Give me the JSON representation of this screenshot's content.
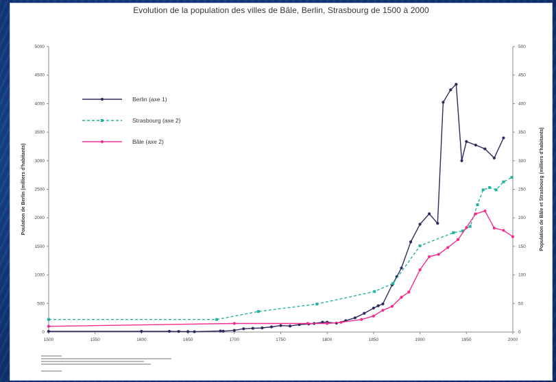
{
  "chart_data": {
    "type": "line",
    "title": "Evolution de la population des villes de Bâle, Berlin, Strasbourg de 1500 à 2000",
    "xlabel": "",
    "ylabel_left": "Poulation de Berlin (milliers d'habitants)",
    "ylabel_right": "Population de Bâle et Strasbourg (milliers d'habitants)",
    "xlim": [
      1500,
      2000
    ],
    "ylim_left": [
      0,
      5000
    ],
    "ylim_right": [
      0,
      500
    ],
    "x_ticks": [
      1500,
      1550,
      1600,
      1650,
      1700,
      1750,
      1800,
      1850,
      1900,
      1950,
      2000
    ],
    "y_ticks_left": [
      0,
      500,
      1000,
      1500,
      2000,
      2500,
      3000,
      3500,
      4000,
      4500,
      5000
    ],
    "y_ticks_right": [
      0,
      50,
      100,
      150,
      200,
      250,
      300,
      350,
      400,
      450,
      500
    ],
    "legend_position": "top-left",
    "series": [
      {
        "name": "Berlin (axe 1)",
        "axis": "left",
        "color": "#2b2b5e",
        "style": "solid",
        "points": [
          [
            1500,
            12
          ],
          [
            1600,
            12
          ],
          [
            1630,
            12
          ],
          [
            1640,
            10
          ],
          [
            1650,
            8
          ],
          [
            1657,
            6
          ],
          [
            1685,
            18
          ],
          [
            1688,
            15
          ],
          [
            1700,
            29
          ],
          [
            1710,
            57
          ],
          [
            1720,
            65
          ],
          [
            1730,
            72
          ],
          [
            1740,
            90
          ],
          [
            1750,
            113
          ],
          [
            1760,
            105
          ],
          [
            1770,
            130
          ],
          [
            1780,
            140
          ],
          [
            1786,
            150
          ],
          [
            1795,
            172
          ],
          [
            1800,
            172
          ],
          [
            1810,
            155
          ],
          [
            1820,
            199
          ],
          [
            1830,
            248
          ],
          [
            1840,
            328
          ],
          [
            1850,
            419
          ],
          [
            1855,
            460
          ],
          [
            1860,
            493
          ],
          [
            1870,
            826
          ],
          [
            1875,
            970
          ],
          [
            1880,
            1122
          ],
          [
            1890,
            1578
          ],
          [
            1900,
            1889
          ],
          [
            1910,
            2071
          ],
          [
            1919,
            1903
          ],
          [
            1925,
            4024
          ],
          [
            1933,
            4242
          ],
          [
            1939,
            4339
          ],
          [
            1945,
            3000
          ],
          [
            1950,
            3336
          ],
          [
            1960,
            3274
          ],
          [
            1970,
            3208
          ],
          [
            1980,
            3048
          ],
          [
            1990,
            3400
          ]
        ]
      },
      {
        "name": "Strasbourg (axe 2)",
        "axis": "right",
        "color": "#22b3a0",
        "style": "dashed",
        "points": [
          [
            1500,
            22
          ],
          [
            1681,
            22
          ],
          [
            1726,
            36
          ],
          [
            1789,
            49
          ],
          [
            1851,
            71
          ],
          [
            1871,
            85
          ],
          [
            1900,
            151
          ],
          [
            1936,
            174
          ],
          [
            1946,
            177
          ],
          [
            1954,
            185
          ],
          [
            1962,
            223
          ],
          [
            1968,
            249
          ],
          [
            1975,
            253
          ],
          [
            1982,
            249
          ],
          [
            1990,
            263
          ],
          [
            1999,
            271
          ]
        ]
      },
      {
        "name": "Bâle (axe 2)",
        "axis": "right",
        "color": "#f02c8e",
        "style": "solid",
        "points": [
          [
            1500,
            10
          ],
          [
            1700,
            15
          ],
          [
            1779,
            15
          ],
          [
            1800,
            15
          ],
          [
            1815,
            17
          ],
          [
            1837,
            22
          ],
          [
            1850,
            28
          ],
          [
            1860,
            38
          ],
          [
            1870,
            45
          ],
          [
            1880,
            61
          ],
          [
            1888,
            70
          ],
          [
            1900,
            109
          ],
          [
            1910,
            132
          ],
          [
            1920,
            136
          ],
          [
            1930,
            148
          ],
          [
            1941,
            162
          ],
          [
            1950,
            183
          ],
          [
            1960,
            207
          ],
          [
            1970,
            212
          ],
          [
            1980,
            182
          ],
          [
            1990,
            178
          ],
          [
            2000,
            167
          ]
        ]
      }
    ],
    "notes": "Illegible small source text beneath the plot is rendered as faint placeholder lines."
  }
}
